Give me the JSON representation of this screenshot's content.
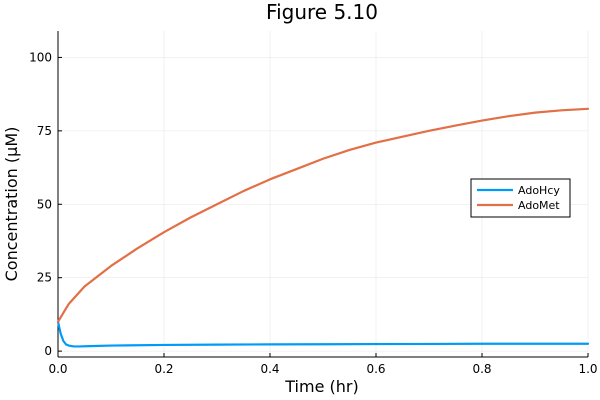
{
  "chart_data": {
    "type": "line",
    "title": "Figure 5.10",
    "xlabel": "Time (hr)",
    "ylabel": "Concentration (µM)",
    "xlim": [
      0,
      1
    ],
    "ylim": [
      -2,
      109
    ],
    "xticks": [
      0,
      0.2,
      0.4,
      0.6,
      0.8,
      1
    ],
    "xtick_labels": [
      "0.0",
      "0.2",
      "0.4",
      "0.6",
      "0.8",
      "1.0"
    ],
    "yticks": [
      0,
      25,
      50,
      75,
      100
    ],
    "ytick_labels": [
      "0",
      "25",
      "50",
      "75",
      "100"
    ],
    "grid": true,
    "legend_position": "right",
    "series": [
      {
        "name": "AdoHcy",
        "color": "#009af9",
        "x": [
          0,
          0.005,
          0.01,
          0.015,
          0.02,
          0.03,
          0.04,
          0.06,
          0.1,
          0.2,
          0.3,
          0.4,
          0.5,
          0.6,
          0.7,
          0.8,
          0.9,
          1.0
        ],
        "y": [
          10,
          6,
          3.5,
          2.3,
          1.9,
          1.6,
          1.6,
          1.7,
          1.9,
          2.1,
          2.2,
          2.3,
          2.35,
          2.4,
          2.45,
          2.5,
          2.5,
          2.5
        ]
      },
      {
        "name": "AdoMet",
        "color": "#e26f46",
        "x": [
          0,
          0.01,
          0.02,
          0.05,
          0.1,
          0.15,
          0.2,
          0.25,
          0.3,
          0.35,
          0.4,
          0.45,
          0.5,
          0.55,
          0.6,
          0.65,
          0.7,
          0.75,
          0.8,
          0.85,
          0.9,
          0.95,
          1.0
        ],
        "y": [
          10,
          13,
          16,
          22,
          29,
          35,
          40.5,
          45.5,
          50,
          54.5,
          58.5,
          62,
          65.5,
          68.5,
          71,
          73,
          75,
          76.8,
          78.5,
          80,
          81.2,
          82,
          82.5
        ]
      }
    ]
  }
}
